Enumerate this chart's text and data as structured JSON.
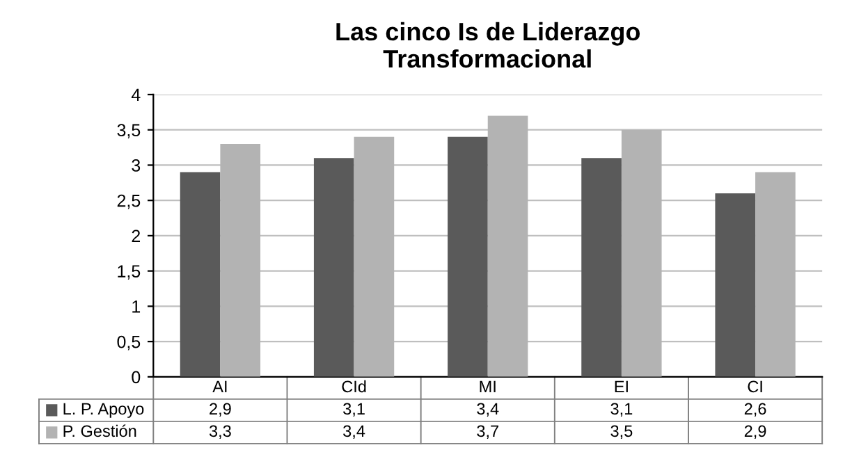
{
  "chart_data": {
    "type": "bar",
    "title": "Las cinco Is de Liderazgo\nTransformacional",
    "categories": [
      "AI",
      "CId",
      "MI",
      "EI",
      "CI"
    ],
    "series": [
      {
        "name": "L. P. Apoyo",
        "color": "#5a5a5a",
        "values": [
          2.9,
          3.1,
          3.4,
          3.1,
          2.6
        ],
        "value_labels": [
          "2,9",
          "3,1",
          "3,4",
          "3,1",
          "2,6"
        ]
      },
      {
        "name": "P. Gestión",
        "color": "#b3b3b3",
        "values": [
          3.3,
          3.4,
          3.7,
          3.5,
          2.9
        ],
        "value_labels": [
          "3,3",
          "3,4",
          "3,7",
          "3,5",
          "2,9"
        ]
      }
    ],
    "ylim": [
      0,
      4
    ],
    "yticks": [
      0,
      {
        "value": 0.5,
        "label": "0,5"
      },
      1,
      {
        "value": 1.5,
        "label": "1,5"
      },
      2,
      {
        "value": 2.5,
        "label": "2,5"
      },
      3,
      {
        "value": 3.5,
        "label": "3,5"
      },
      4
    ],
    "grid": "y",
    "legend": "bottom"
  }
}
